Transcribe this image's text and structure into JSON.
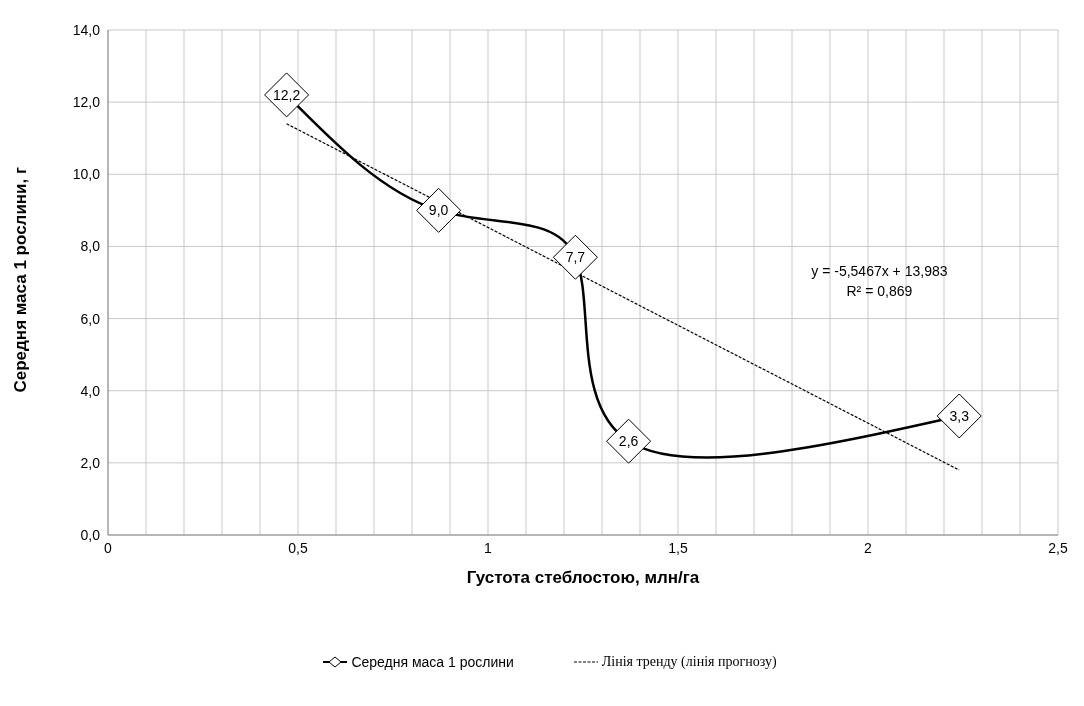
{
  "chart_data": {
    "type": "line",
    "xlabel": "Густота стеблостою, млн/га",
    "ylabel": "Середня маса 1 рослини, г",
    "series": [
      {
        "name": "Середня маса 1 рослини",
        "color": "#000000",
        "x": [
          0.47,
          0.87,
          1.23,
          1.37,
          2.24
        ],
        "values": [
          12.2,
          9.0,
          7.7,
          2.6,
          3.3
        ],
        "value_labels": [
          "12,2",
          "9,0",
          "7,7",
          "2,6",
          "3,3"
        ],
        "marker": "diamond",
        "line_style": "solid"
      },
      {
        "name": "Лінія тренду (лінія  прогнозу)",
        "color": "#000000",
        "x": [
          0.47,
          2.24
        ],
        "values": [
          11.4,
          1.8
        ],
        "marker": "none",
        "line_style": "dashed"
      }
    ],
    "xlim": [
      0,
      2.5
    ],
    "xticks": [
      0,
      {
        "value": 0.1,
        "label": null
      },
      {
        "value": 0.2,
        "label": null
      },
      {
        "value": 0.3,
        "label": null
      },
      {
        "value": 0.4,
        "label": null
      },
      {
        "value": 0.5,
        "label": "0,5"
      },
      {
        "value": 0.6,
        "label": null
      },
      {
        "value": 0.7,
        "label": null
      },
      {
        "value": 0.8,
        "label": null
      },
      {
        "value": 0.9,
        "label": null
      },
      1,
      {
        "value": 1.1,
        "label": null
      },
      {
        "value": 1.2,
        "label": null
      },
      {
        "value": 1.3,
        "label": null
      },
      {
        "value": 1.4,
        "label": null
      },
      {
        "value": 1.5,
        "label": "1,5"
      },
      {
        "value": 1.6,
        "label": null
      },
      {
        "value": 1.7,
        "label": null
      },
      {
        "value": 1.8,
        "label": null
      },
      {
        "value": 1.9,
        "label": null
      },
      2,
      {
        "value": 2.1,
        "label": null
      },
      {
        "value": 2.2,
        "label": null
      },
      {
        "value": 2.3,
        "label": null
      },
      {
        "value": 2.4,
        "label": null
      },
      {
        "value": 2.5,
        "label": "2,5"
      }
    ],
    "ylim": [
      0,
      14
    ],
    "yticks": [
      {
        "value": 0,
        "label": "0,0"
      },
      {
        "value": 2,
        "label": "2,0"
      },
      {
        "value": 4,
        "label": "4,0"
      },
      {
        "value": 6,
        "label": "6,0"
      },
      {
        "value": 8,
        "label": "8,0"
      },
      {
        "value": 10,
        "label": "10,0"
      },
      {
        "value": 12,
        "label": "12,0"
      },
      {
        "value": 14,
        "label": "14,0"
      }
    ],
    "grid": true,
    "legend": "bottom",
    "annotations": [
      "y = -5,5467x + 13,983",
      "R² = 0,869"
    ]
  }
}
